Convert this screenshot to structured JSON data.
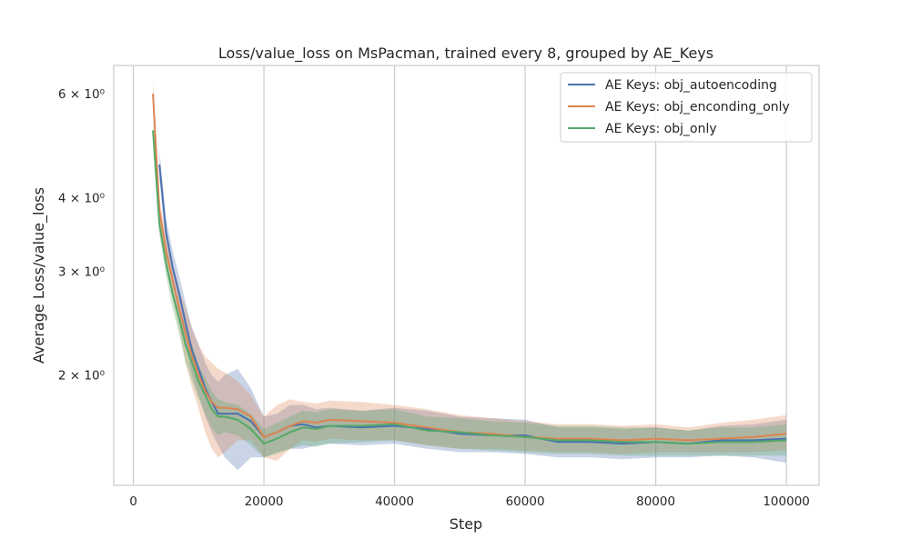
{
  "chart_data": {
    "type": "line",
    "title": "Loss/value_loss on MsPacman, trained every 8, grouped by AE_Keys",
    "xlabel": "Step",
    "ylabel": "Average Loss/value_loss",
    "xlim": [
      -3000,
      105000
    ],
    "ylim": [
      1.3,
      6.7
    ],
    "y_scale": "log",
    "grid": "vertical",
    "legend_position": "top-right",
    "x_ticks": [
      0,
      20000,
      40000,
      60000,
      80000,
      100000
    ],
    "x_tick_labels": [
      "0",
      "20000",
      "40000",
      "60000",
      "80000",
      "100000"
    ],
    "y_ticks": [
      2,
      3,
      4,
      6
    ],
    "y_tick_labels": [
      "2 × 10⁰",
      "3 × 10⁰",
      "4 × 10⁰",
      "6 × 10⁰"
    ],
    "series": [
      {
        "name": "AE Keys: obj_autoencoding",
        "color": "#4c72b0",
        "x": [
          4000,
          5000,
          6000,
          7000,
          8000,
          9000,
          10000,
          11000,
          12000,
          13000,
          14000,
          16000,
          18000,
          20000,
          22000,
          24000,
          26000,
          28000,
          30000,
          35000,
          40000,
          45000,
          50000,
          55000,
          60000,
          65000,
          70000,
          75000,
          80000,
          85000,
          90000,
          95000,
          100000
        ],
        "y": [
          4.55,
          3.5,
          3.05,
          2.75,
          2.45,
          2.2,
          2.05,
          1.9,
          1.8,
          1.72,
          1.72,
          1.72,
          1.67,
          1.57,
          1.6,
          1.64,
          1.65,
          1.63,
          1.64,
          1.63,
          1.64,
          1.62,
          1.59,
          1.58,
          1.58,
          1.54,
          1.54,
          1.53,
          1.54,
          1.53,
          1.55,
          1.55,
          1.56
        ],
        "lower": [
          4.3,
          3.3,
          2.85,
          2.55,
          2.25,
          2.0,
          1.85,
          1.7,
          1.6,
          1.52,
          1.45,
          1.38,
          1.45,
          1.45,
          1.48,
          1.5,
          1.5,
          1.52,
          1.53,
          1.52,
          1.53,
          1.5,
          1.48,
          1.48,
          1.47,
          1.45,
          1.45,
          1.44,
          1.45,
          1.45,
          1.46,
          1.45,
          1.42
        ],
        "upper": [
          4.8,
          3.7,
          3.25,
          2.95,
          2.65,
          2.4,
          2.25,
          2.1,
          2.0,
          1.95,
          2.0,
          2.05,
          1.9,
          1.7,
          1.72,
          1.78,
          1.78,
          1.75,
          1.76,
          1.74,
          1.76,
          1.74,
          1.7,
          1.69,
          1.68,
          1.63,
          1.63,
          1.62,
          1.63,
          1.61,
          1.64,
          1.65,
          1.68
        ]
      },
      {
        "name": "AE Keys: obj_enconding_only",
        "color": "#dd8452",
        "x": [
          3000,
          4000,
          5000,
          6000,
          7000,
          8000,
          9000,
          10000,
          11000,
          12000,
          13000,
          14000,
          16000,
          18000,
          20000,
          22000,
          24000,
          26000,
          28000,
          30000,
          35000,
          40000,
          45000,
          50000,
          55000,
          60000,
          65000,
          70000,
          75000,
          80000,
          85000,
          90000,
          95000,
          100000
        ],
        "y": [
          6.0,
          3.8,
          3.25,
          2.9,
          2.6,
          2.35,
          2.15,
          2.0,
          1.88,
          1.8,
          1.76,
          1.76,
          1.75,
          1.7,
          1.57,
          1.6,
          1.64,
          1.67,
          1.66,
          1.68,
          1.67,
          1.66,
          1.63,
          1.6,
          1.59,
          1.57,
          1.56,
          1.56,
          1.55,
          1.56,
          1.55,
          1.56,
          1.57,
          1.59
        ],
        "lower": [
          5.7,
          3.6,
          3.05,
          2.7,
          2.4,
          2.1,
          1.9,
          1.75,
          1.6,
          1.5,
          1.45,
          1.48,
          1.55,
          1.55,
          1.45,
          1.43,
          1.5,
          1.55,
          1.54,
          1.56,
          1.55,
          1.55,
          1.52,
          1.5,
          1.5,
          1.49,
          1.48,
          1.48,
          1.47,
          1.48,
          1.48,
          1.48,
          1.48,
          1.49
        ],
        "upper": [
          6.3,
          4.0,
          3.45,
          3.1,
          2.8,
          2.6,
          2.4,
          2.25,
          2.15,
          2.1,
          2.05,
          2.02,
          1.95,
          1.85,
          1.7,
          1.78,
          1.82,
          1.8,
          1.79,
          1.81,
          1.8,
          1.78,
          1.75,
          1.71,
          1.69,
          1.67,
          1.65,
          1.65,
          1.64,
          1.65,
          1.63,
          1.66,
          1.68,
          1.71
        ]
      },
      {
        "name": "AE Keys: obj_only",
        "color": "#55a868",
        "x": [
          3000,
          4000,
          5000,
          6000,
          7000,
          8000,
          9000,
          10000,
          11000,
          12000,
          13000,
          14000,
          16000,
          18000,
          20000,
          22000,
          24000,
          26000,
          28000,
          30000,
          35000,
          40000,
          45000,
          50000,
          55000,
          60000,
          65000,
          70000,
          75000,
          80000,
          85000,
          90000,
          95000,
          100000
        ],
        "y": [
          5.2,
          3.6,
          3.1,
          2.75,
          2.5,
          2.25,
          2.1,
          1.95,
          1.85,
          1.75,
          1.7,
          1.7,
          1.68,
          1.62,
          1.53,
          1.56,
          1.6,
          1.63,
          1.62,
          1.64,
          1.64,
          1.65,
          1.61,
          1.6,
          1.58,
          1.57,
          1.55,
          1.55,
          1.54,
          1.54,
          1.53,
          1.54,
          1.54,
          1.55
        ],
        "lower": [
          5.0,
          3.45,
          2.95,
          2.6,
          2.35,
          2.1,
          1.95,
          1.82,
          1.72,
          1.63,
          1.58,
          1.6,
          1.58,
          1.52,
          1.45,
          1.47,
          1.5,
          1.52,
          1.51,
          1.53,
          1.54,
          1.55,
          1.52,
          1.5,
          1.49,
          1.48,
          1.47,
          1.47,
          1.46,
          1.46,
          1.46,
          1.46,
          1.46,
          1.46
        ],
        "upper": [
          5.4,
          3.75,
          3.25,
          2.9,
          2.65,
          2.4,
          2.25,
          2.08,
          1.98,
          1.88,
          1.82,
          1.8,
          1.78,
          1.72,
          1.62,
          1.66,
          1.7,
          1.74,
          1.73,
          1.75,
          1.74,
          1.75,
          1.7,
          1.69,
          1.67,
          1.66,
          1.64,
          1.64,
          1.63,
          1.63,
          1.61,
          1.63,
          1.63,
          1.65
        ]
      }
    ]
  }
}
